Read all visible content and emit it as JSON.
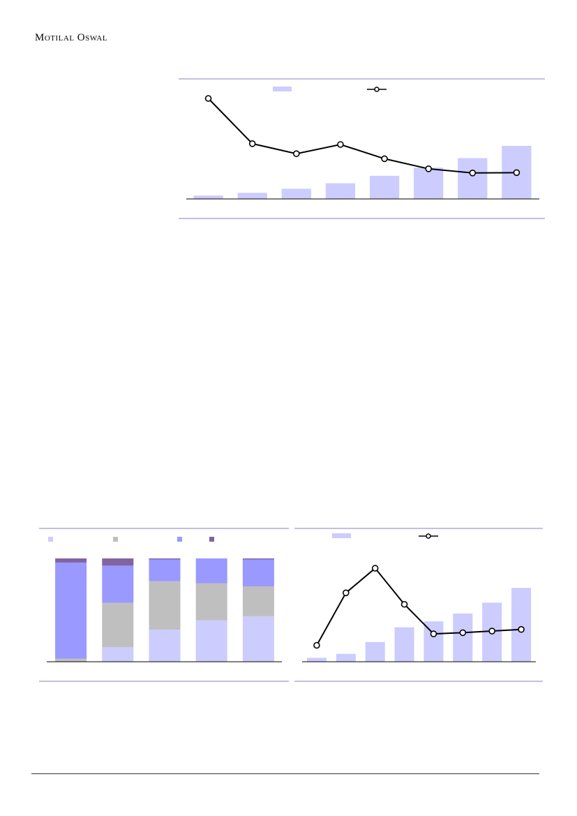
{
  "header": {
    "brand": "Motilal Oswal"
  },
  "colors": {
    "rule": "#8080c8",
    "bar_light": "#ccccff",
    "bar_grey": "#bfbfbf",
    "bar_mid": "#9999ff",
    "bar_dark": "#8064a2",
    "line": "#000000"
  },
  "chart_data": [
    {
      "type": "bar+line",
      "title": "",
      "categories": [
        "",
        "",
        "",
        "",
        "",
        "",
        "",
        ""
      ],
      "series": [
        {
          "kind": "bar",
          "values": [
            5,
            9,
            15,
            23,
            34,
            46,
            60,
            78
          ]
        },
        {
          "kind": "line",
          "values": [
            60,
            33,
            27,
            32.5,
            24,
            18,
            15.5,
            15.7
          ]
        }
      ],
      "ylim_bar": [
        0,
        160
      ],
      "ylim_line": [
        0,
        65
      ],
      "legend": "top-center",
      "grid": false
    },
    {
      "type": "stacked-bar-100",
      "title": "",
      "categories": [
        "",
        "",
        "",
        "",
        ""
      ],
      "series": [
        {
          "values": [
            0,
            14,
            31,
            40,
            44
          ]
        },
        {
          "values": [
            3,
            43,
            47,
            36,
            29
          ]
        },
        {
          "values": [
            93,
            36,
            21,
            24,
            26
          ]
        },
        {
          "values": [
            4,
            7,
            1,
            0,
            1
          ]
        }
      ],
      "ylim": [
        0,
        100
      ],
      "legend": "top",
      "grid": false
    },
    {
      "type": "bar+line",
      "title": "",
      "categories": [
        "",
        "",
        "",
        "",
        "",
        "",
        "",
        ""
      ],
      "series": [
        {
          "kind": "bar",
          "values": [
            4,
            8,
            20,
            35,
            41,
            49,
            60,
            75
          ]
        },
        {
          "kind": "line",
          "values": [
            10,
            42,
            57,
            35,
            17,
            17.7,
            18.7,
            19.7
          ]
        }
      ],
      "ylim_bar": [
        0,
        100
      ],
      "ylim_line": [
        0,
        60
      ],
      "legend": "top-center",
      "grid": false
    }
  ]
}
